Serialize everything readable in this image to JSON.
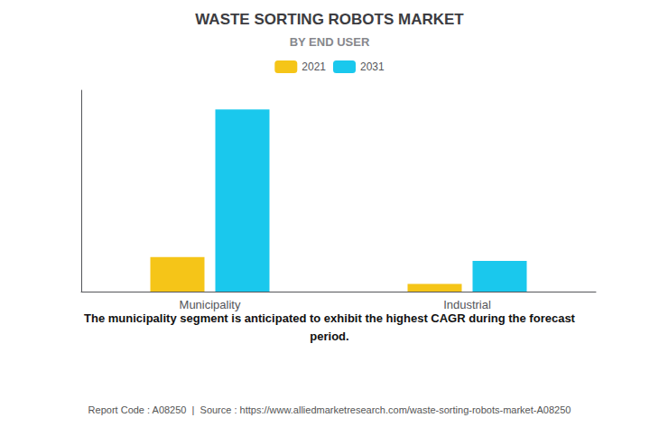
{
  "chart_data": {
    "type": "bar",
    "title": "WASTE SORTING ROBOTS MARKET",
    "subtitle": "BY END USER",
    "categories": [
      "Municipality",
      "Industrial"
    ],
    "series": [
      {
        "name": "2021",
        "color": "#F5C518",
        "values": [
          0.18,
          0.04
        ]
      },
      {
        "name": "2031",
        "color": "#1AC8ED",
        "values": [
          0.95,
          0.16
        ]
      }
    ],
    "ylim": [
      0,
      1.05
    ],
    "grid": false,
    "legend": "top",
    "tick_labels": "x",
    "annotations": [
      "The municipality segment is anticipated to exhibit the highest CAGR during the forecast\nperiod.",
      "Report Code : A08250  |  Source : https://www.alliedmarketresearch.com/waste-sorting-robots-market-A08250"
    ]
  }
}
